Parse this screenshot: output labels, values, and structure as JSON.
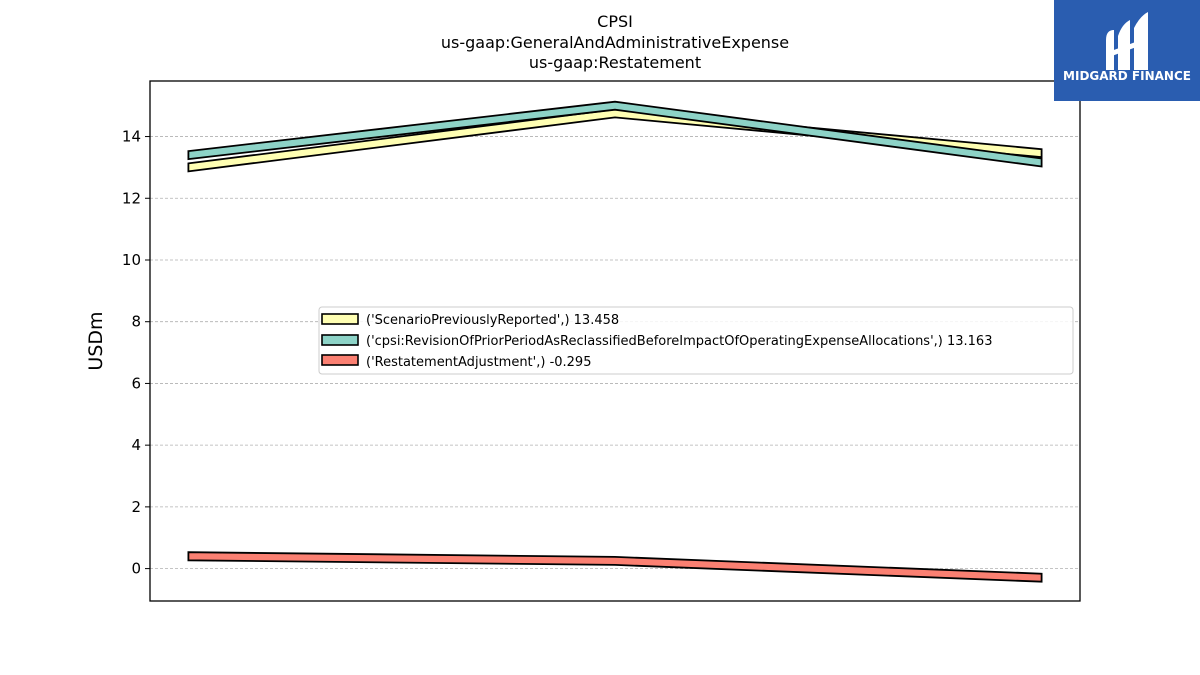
{
  "brand": {
    "name": "MIDGARD FINANCE",
    "color": "#2a5db0"
  },
  "chart_data": {
    "type": "area",
    "title_lines": [
      "CPSI",
      "us-gaap:GeneralAndAdministrativeExpense",
      "us-gaap:Restatement"
    ],
    "xlabel": "",
    "ylabel": "USDm",
    "x": [
      0,
      1,
      2
    ],
    "xlim": [
      -0.09,
      2.09
    ],
    "ylim": [
      -1.05,
      15.8
    ],
    "yticks": [
      0,
      2,
      4,
      6,
      8,
      10,
      12,
      14
    ],
    "grid": "y-dashed",
    "legend_position": "center-right",
    "series": [
      {
        "name": "('ScenarioPreviouslyReported',) 13.458",
        "color": "#ffffb3",
        "values": [
          13.0,
          14.75,
          13.46
        ]
      },
      {
        "name": "('cpsi:RevisionOfPriorPeriodAsReclassifiedBeforeImpactOfOperatingExpenseAllocations',) 13.163",
        "color": "#8dd3c7",
        "values": [
          13.4,
          15.0,
          13.16
        ]
      },
      {
        "name": "('RestatementAdjustment',) -0.295",
        "color": "#fb8072",
        "values": [
          0.4,
          0.25,
          -0.295
        ]
      }
    ]
  }
}
